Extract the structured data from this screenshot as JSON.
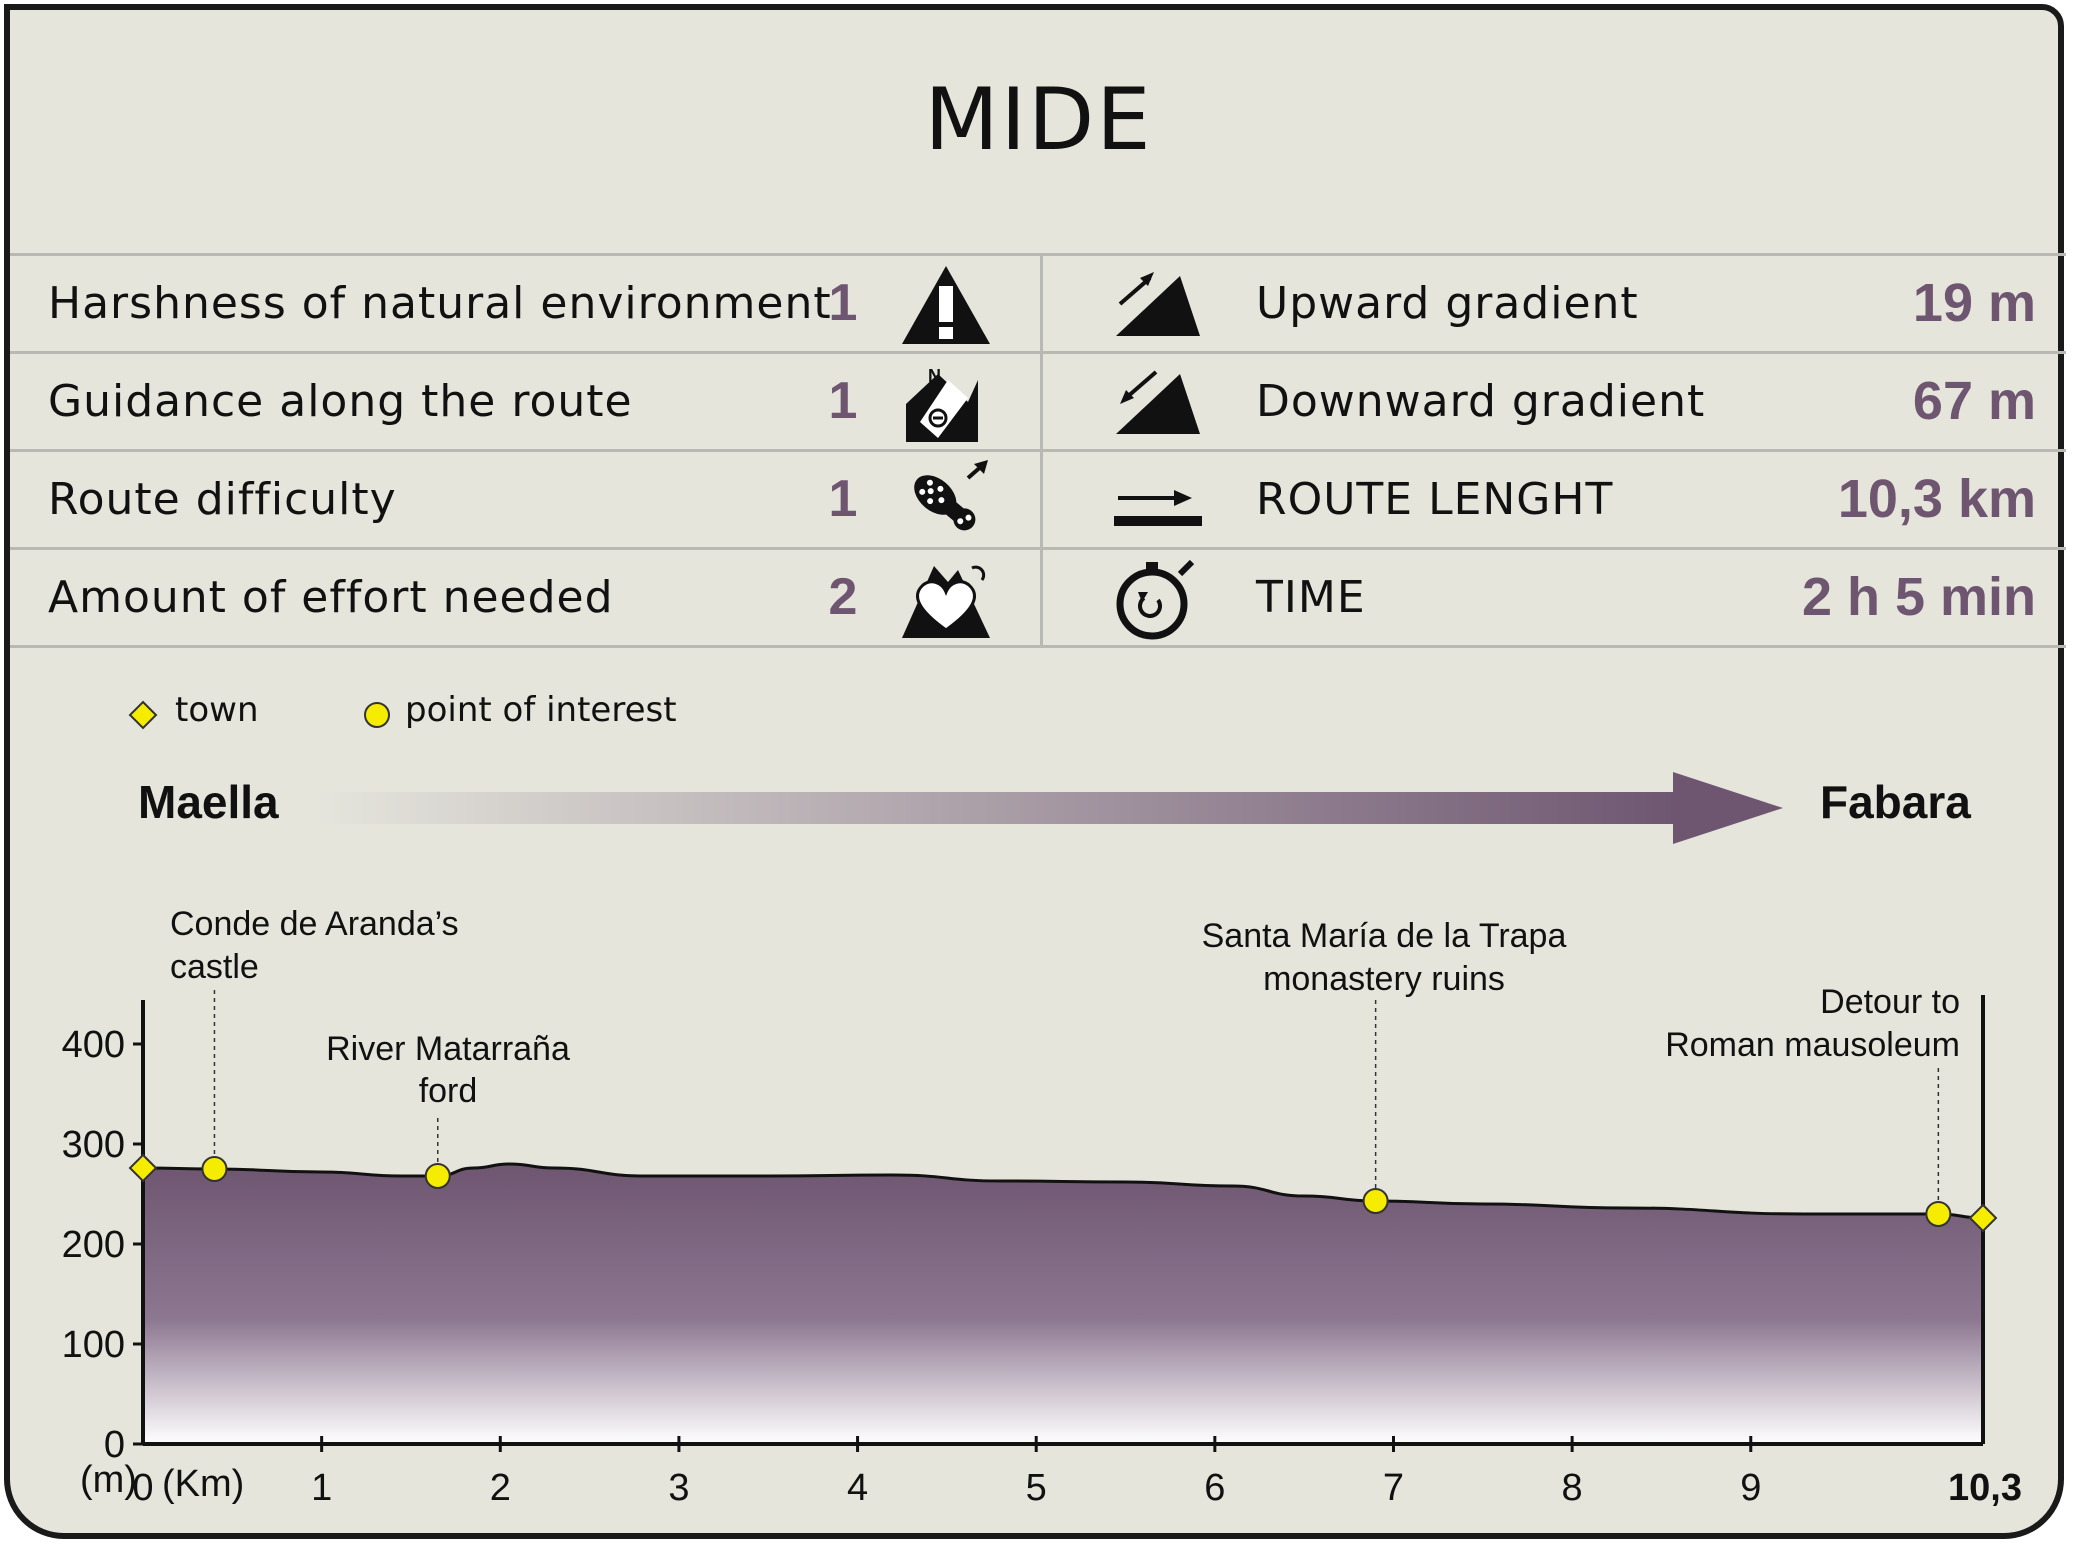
{
  "title": "MIDE",
  "mide": {
    "left": [
      {
        "label": "Harshness of natural environment",
        "score": "1",
        "icon": "warning-mountain-icon"
      },
      {
        "label": "Guidance along the route",
        "score": "1",
        "icon": "compass-mountain-icon"
      },
      {
        "label": "Route difficulty",
        "score": "1",
        "icon": "boot-sole-icon"
      },
      {
        "label": "Amount of effort needed",
        "score": "2",
        "icon": "heart-mountain-icon"
      }
    ],
    "right": [
      {
        "label": "Upward gradient",
        "value": "19 m",
        "icon": "ascent-icon"
      },
      {
        "label": "Downward gradient",
        "value": "67 m",
        "icon": "descent-icon"
      },
      {
        "label": "ROUTE LENGHT",
        "value": "10,3 km",
        "icon": "distance-arrow-icon"
      },
      {
        "label": "TIME",
        "value": "2 h 5 min",
        "icon": "stopwatch-icon"
      }
    ]
  },
  "legend": {
    "town": "town",
    "poi": "point of interest"
  },
  "route": {
    "start": "Maella",
    "end": "Fabara"
  },
  "colors": {
    "profile_fill": "#6e5671",
    "accent_value": "#6e5671",
    "marker": "#f5ec00",
    "background": "#e5e5dc"
  },
  "chart_data": {
    "type": "area",
    "xlabel": "(Km)",
    "ylabel": "(m)",
    "xlim": [
      0,
      10.3
    ],
    "ylim": [
      0,
      450
    ],
    "x_ticks": [
      "0",
      "1",
      "2",
      "3",
      "4",
      "5",
      "6",
      "7",
      "8",
      "9",
      "10,3"
    ],
    "y_ticks": [
      "0",
      "100",
      "200",
      "300",
      "400"
    ],
    "x": [
      0,
      0.4,
      1,
      1.45,
      1.65,
      1.85,
      2.05,
      2.3,
      2.8,
      3.5,
      4.2,
      4.8,
      5.5,
      6.1,
      6.5,
      6.9,
      7.5,
      8.3,
      9.3,
      10.05,
      10.3
    ],
    "y": [
      276,
      275,
      272,
      268,
      268,
      276,
      280,
      276,
      268,
      268,
      269,
      263,
      262,
      258,
      248,
      243,
      240,
      236,
      230,
      230,
      226
    ],
    "markers": [
      {
        "type": "town",
        "x": 0,
        "y": 276
      },
      {
        "type": "poi",
        "x": 0.4,
        "y": 275,
        "label": [
          "Conde de Aranda’s",
          "castle"
        ]
      },
      {
        "type": "poi",
        "x": 1.65,
        "y": 268,
        "label": [
          "River Matarraña",
          "ford"
        ]
      },
      {
        "type": "poi",
        "x": 6.9,
        "y": 243,
        "label": [
          "Santa María de la Trapa",
          "monastery ruins"
        ]
      },
      {
        "type": "poi",
        "x": 10.05,
        "y": 230,
        "label": [
          "Detour to",
          "Roman mausoleum"
        ]
      },
      {
        "type": "town",
        "x": 10.3,
        "y": 226
      }
    ]
  }
}
